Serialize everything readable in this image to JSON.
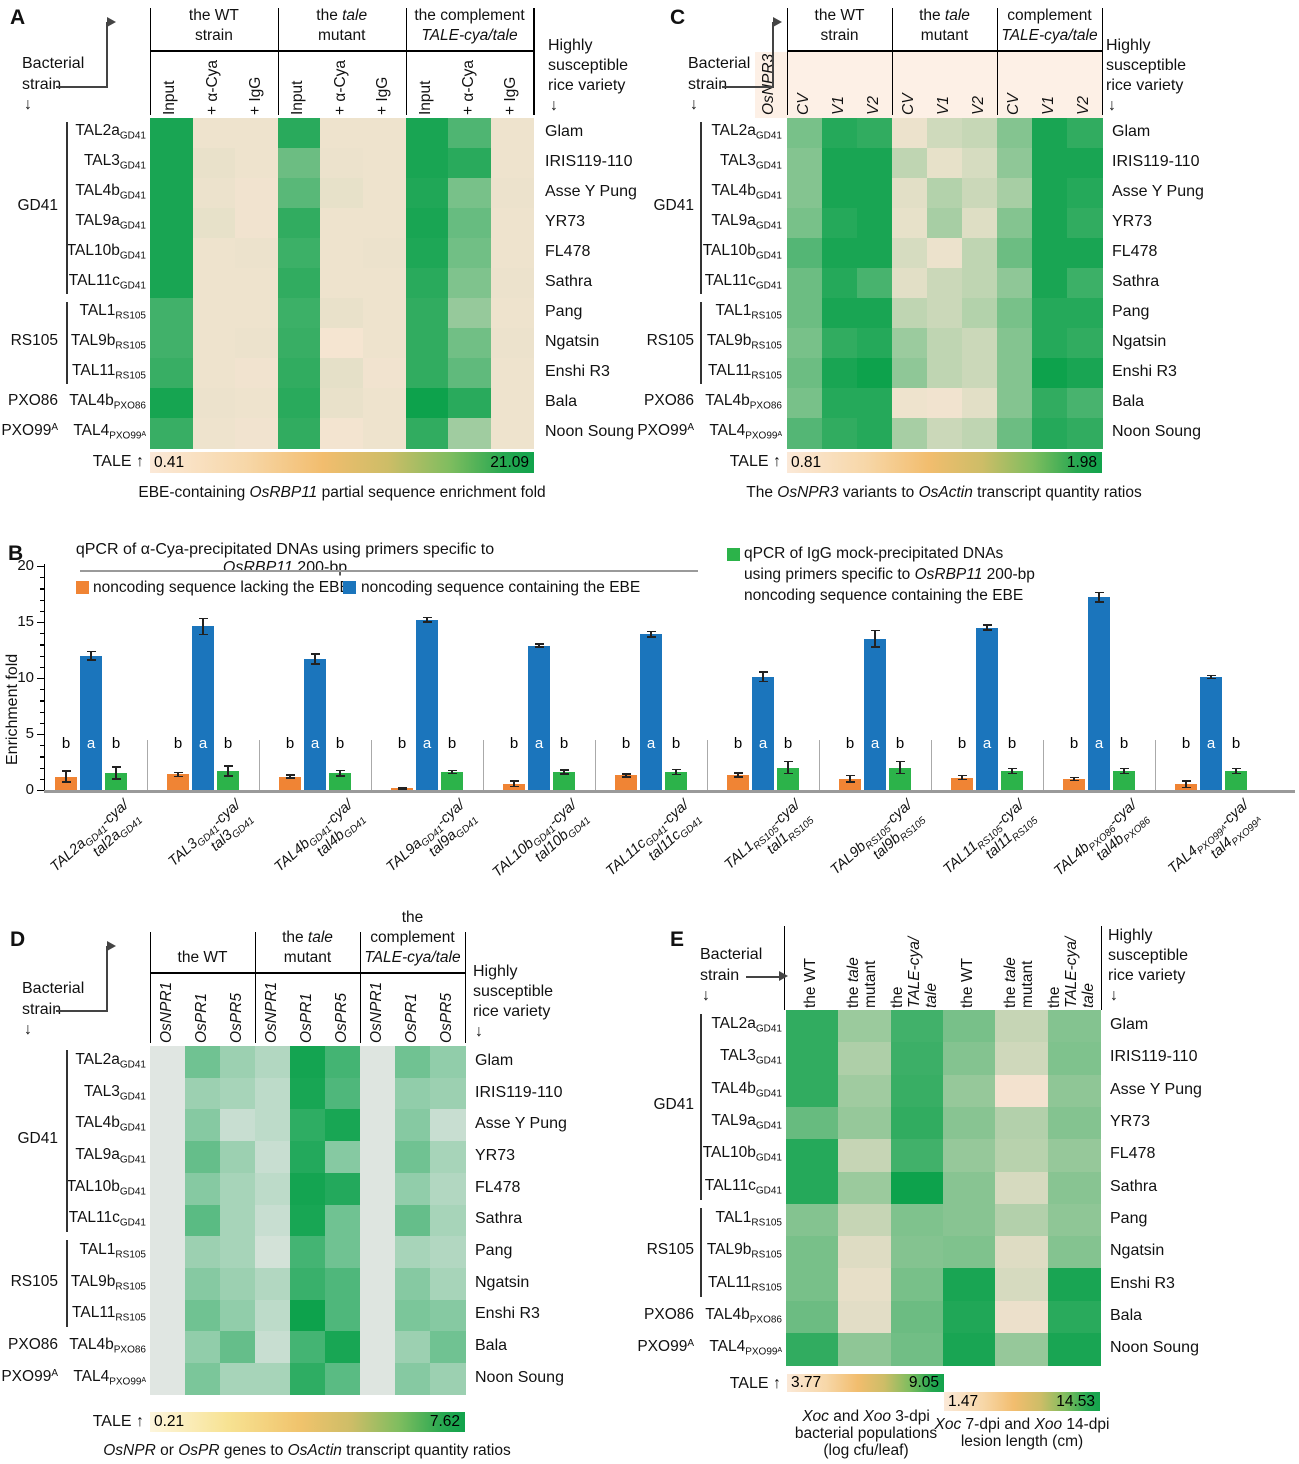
{
  "shared": {
    "row_labels": [
      "TAL2a~GD41~",
      "TAL3~GD41~",
      "TAL4b~GD41~",
      "TAL9a~GD41~",
      "TAL10b~GD41~",
      "TAL11c~GD41~",
      "TAL1~RS105~",
      "TAL9b~RS105~",
      "TAL11~RS105~",
      "TAL4b~PXO86~",
      "TAL4~PXO99ᴬ~"
    ],
    "strain_groups": [
      {
        "label": "GD41",
        "rows": [
          0,
          5
        ],
        "bracket": true
      },
      {
        "label": "RS105",
        "rows": [
          6,
          8
        ],
        "bracket": true
      },
      {
        "label": "PXO86",
        "rows": [
          9,
          9
        ],
        "bracket": false
      },
      {
        "label": "PXO99^A^",
        "rows": [
          10,
          10
        ],
        "bracket": false
      }
    ],
    "variety_labels": [
      "Glam",
      "IRIS119-110",
      "Asse Y Pung",
      "YR73",
      "FL478",
      "Sathra",
      "Pang",
      "Ngatsin",
      "Enshi R3",
      "Bala",
      "Noon Soung"
    ],
    "bacterial_label_lines": [
      "Bacterial",
      "strain"
    ],
    "highly_label_lines": [
      "Highly",
      "susceptible",
      "rice variety"
    ],
    "down_arrow": "↓"
  },
  "chart_data": [
    {
      "id": "A",
      "type": "heatmap",
      "col_groups": [
        [
          "the WT",
          "strain"
        ],
        [
          "the *tale*",
          "mutant"
        ],
        [
          "the complement",
          "*TALE-cya/tale*"
        ]
      ],
      "col_labels": [
        "Input",
        "+ α-Cya",
        "+ IgG",
        "Input",
        "+ α-Cya",
        "+ IgG",
        "Input",
        "+ α-Cya",
        "+ IgG"
      ],
      "scale": {
        "label": "TALE ↑",
        "min": "0.41",
        "max": "21.09"
      },
      "caption": "EBE-containing *OsRBP11* partial sequence enrichment fold",
      "colors": {
        "low": "#fae6d4",
        "high": "#0da24c"
      },
      "matrix": [
        [
          0.95,
          0.05,
          0.05,
          0.88,
          0.05,
          0.05,
          0.95,
          0.72,
          0.05
        ],
        [
          0.95,
          0.07,
          0.05,
          0.6,
          0.06,
          0.05,
          0.95,
          0.88,
          0.05
        ],
        [
          0.95,
          0.06,
          0.04,
          0.68,
          0.08,
          0.05,
          0.92,
          0.55,
          0.06
        ],
        [
          0.95,
          0.08,
          0.04,
          0.85,
          0.05,
          0.05,
          0.95,
          0.62,
          0.05
        ],
        [
          0.95,
          0.05,
          0.06,
          0.8,
          0.05,
          0.06,
          0.93,
          0.58,
          0.05
        ],
        [
          0.95,
          0.05,
          0.05,
          0.85,
          0.05,
          0.05,
          0.88,
          0.52,
          0.06
        ],
        [
          0.78,
          0.05,
          0.05,
          0.8,
          0.07,
          0.05,
          0.85,
          0.42,
          0.05
        ],
        [
          0.78,
          0.05,
          0.06,
          0.82,
          0.02,
          0.05,
          0.85,
          0.58,
          0.06
        ],
        [
          0.82,
          0.05,
          0.04,
          0.85,
          0.09,
          0.04,
          0.85,
          0.65,
          0.05
        ],
        [
          0.96,
          0.06,
          0.05,
          0.88,
          0.07,
          0.05,
          1.0,
          0.88,
          0.05
        ],
        [
          0.82,
          0.05,
          0.04,
          0.85,
          0.03,
          0.05,
          0.85,
          0.38,
          0.05
        ]
      ]
    },
    {
      "id": "B",
      "type": "bar",
      "title": "qPCR of α-Cya-precipitated DNAs using primers specific to *OsRBP11* 200-bp",
      "ylabel": "Enrichment fold",
      "ylim": [
        0,
        20
      ],
      "yticks": [
        0,
        5,
        10,
        15,
        20
      ],
      "sig_letters": [
        "b",
        "a",
        "b"
      ],
      "categories": [
        {
          "line1": "TAL2a~GD41~-cya/",
          "line2": "tal2a~GD41~"
        },
        {
          "line1": "TAL3~GD41~-cya/",
          "line2": "tal3~GD41~"
        },
        {
          "line1": "TAL4b~GD41~-cya/",
          "line2": "tal4b~GD41~"
        },
        {
          "line1": "TAL9a~GD41~-cya/",
          "line2": "tal9a~GD41~"
        },
        {
          "line1": "TAL10b~GD41~-cya/",
          "line2": "tal10b~GD41~"
        },
        {
          "line1": "TAL11c~GD41~-cya/",
          "line2": "tal11c~GD41~"
        },
        {
          "line1": "TAL1~RS105~-cya/",
          "line2": "tal1~RS105~"
        },
        {
          "line1": "TAL9b~RS105~-cya/",
          "line2": "tal9b~RS105~"
        },
        {
          "line1": "TAL11~RS105~-cya/",
          "line2": "tal11~RS105~"
        },
        {
          "line1": "TAL4b~PXO86~-cya/",
          "line2": "tal4b~PXO86~"
        },
        {
          "line1": "TAL4~PXO99ᴬ~-cya/",
          "line2": "tal4~PXO99ᴬ~"
        }
      ],
      "series": [
        {
          "name": "noncoding sequence lacking the EBE",
          "color": "#F08434",
          "values": [
            1.2,
            1.4,
            1.2,
            0.15,
            0.55,
            1.3,
            1.35,
            1.0,
            1.1,
            1.0,
            0.5
          ],
          "errors": [
            0.55,
            0.25,
            0.2,
            0.12,
            0.3,
            0.2,
            0.25,
            0.35,
            0.25,
            0.2,
            0.35
          ]
        },
        {
          "name": "noncoding sequence containing the EBE",
          "color": "#1B75BC",
          "values": [
            12.0,
            14.6,
            11.7,
            15.2,
            12.9,
            13.9,
            10.1,
            13.5,
            14.5,
            17.2,
            10.1
          ],
          "errors": [
            0.45,
            0.8,
            0.5,
            0.25,
            0.2,
            0.3,
            0.5,
            0.8,
            0.3,
            0.5,
            0.2
          ]
        },
        {
          "name": "qPCR of IgG mock-precipitated DNAs using primers specific to OsRBP11 200-bp noncoding sequence containing the EBE",
          "color": "#2CB34A",
          "values": [
            1.5,
            1.7,
            1.5,
            1.6,
            1.6,
            1.6,
            2.0,
            2.0,
            1.7,
            1.7,
            1.7
          ],
          "errors": [
            0.6,
            0.5,
            0.3,
            0.2,
            0.25,
            0.3,
            0.6,
            0.6,
            0.3,
            0.3,
            0.3
          ]
        }
      ],
      "legend_right_lines": [
        "qPCR of IgG mock-precipitated DNAs",
        "using primers specific to *OsRBP11* 200-bp",
        "noncoding sequence containing the EBE"
      ]
    },
    {
      "id": "C",
      "type": "heatmap",
      "gene_label": "*OsNPR3*",
      "band_color": "#fdf0e6",
      "col_groups": [
        [
          "the WT",
          "strain"
        ],
        [
          "the *tale*",
          "mutant"
        ],
        [
          "the complement",
          "*TALE-cya/tale*"
        ]
      ],
      "col_labels": [
        "*CV*",
        "*V1*",
        "*V2*",
        "*CV*",
        "*V1*",
        "*V2*",
        "*CV*",
        "*V1*",
        "*V2*"
      ],
      "scale": {
        "label": "TALE ↑",
        "min": "0.81",
        "max": "1.98"
      },
      "caption": "The *OsNPR3* variants to *OsActin* transcript quantity ratios",
      "colors": {
        "low": "#fae6d4",
        "high": "#0da24c"
      },
      "matrix": [
        [
          0.55,
          0.9,
          0.85,
          0.06,
          0.18,
          0.22,
          0.5,
          0.95,
          0.85
        ],
        [
          0.5,
          0.95,
          0.95,
          0.25,
          0.08,
          0.15,
          0.45,
          0.95,
          0.95
        ],
        [
          0.5,
          0.95,
          0.95,
          0.1,
          0.3,
          0.2,
          0.35,
          0.95,
          0.9
        ],
        [
          0.55,
          0.9,
          0.95,
          0.08,
          0.35,
          0.12,
          0.5,
          0.95,
          0.85
        ],
        [
          0.7,
          0.95,
          0.95,
          0.15,
          0.06,
          0.25,
          0.6,
          0.95,
          0.95
        ],
        [
          0.6,
          0.9,
          0.75,
          0.1,
          0.2,
          0.25,
          0.45,
          0.95,
          0.8
        ],
        [
          0.6,
          0.95,
          0.95,
          0.25,
          0.2,
          0.3,
          0.55,
          0.9,
          0.9
        ],
        [
          0.55,
          0.85,
          0.9,
          0.4,
          0.25,
          0.2,
          0.5,
          0.9,
          0.85
        ],
        [
          0.6,
          0.95,
          1.0,
          0.45,
          0.25,
          0.2,
          0.5,
          1.0,
          0.95
        ],
        [
          0.55,
          0.9,
          0.9,
          0.05,
          0.04,
          0.1,
          0.5,
          0.85,
          0.75
        ],
        [
          0.7,
          0.85,
          0.9,
          0.35,
          0.2,
          0.25,
          0.6,
          0.9,
          0.85
        ]
      ]
    },
    {
      "id": "D",
      "type": "heatmap",
      "col_groups": [
        [
          "the WT"
        ],
        [
          "the *tale*",
          "mutant"
        ],
        [
          "the complement",
          "*TALE-cya/tale*"
        ]
      ],
      "col_labels": [
        "*OsNPR1*",
        "*OsPR1*",
        "*OsPR5*",
        "*OsNPR1*",
        "*OsPR1*",
        "*OsPR5*",
        "*OsNPR1*",
        "*OsPR1*",
        "*OsPR5*"
      ],
      "scale": {
        "label": "TALE ↑",
        "min": "0.21",
        "max": "7.62"
      },
      "caption": "*OsNPR* or *OsPR* genes to *OsActin* transcript quantity ratios",
      "colors": {
        "low": "#e9e9e8",
        "high": "#0da24c"
      },
      "matrix": [
        [
          0.04,
          0.55,
          0.35,
          0.25,
          0.97,
          0.75,
          0.05,
          0.55,
          0.4
        ],
        [
          0.04,
          0.35,
          0.3,
          0.2,
          0.95,
          0.7,
          0.05,
          0.4,
          0.35
        ],
        [
          0.04,
          0.45,
          0.15,
          0.2,
          0.85,
          0.95,
          0.05,
          0.45,
          0.15
        ],
        [
          0.04,
          0.6,
          0.35,
          0.15,
          0.9,
          0.45,
          0.05,
          0.55,
          0.3
        ],
        [
          0.04,
          0.45,
          0.3,
          0.2,
          0.97,
          0.9,
          0.05,
          0.4,
          0.25
        ],
        [
          0.04,
          0.65,
          0.3,
          0.15,
          0.95,
          0.55,
          0.05,
          0.6,
          0.3
        ],
        [
          0.04,
          0.35,
          0.3,
          0.1,
          0.75,
          0.55,
          0.05,
          0.3,
          0.25
        ],
        [
          0.04,
          0.45,
          0.35,
          0.25,
          0.8,
          0.7,
          0.05,
          0.45,
          0.3
        ],
        [
          0.04,
          0.55,
          0.4,
          0.2,
          1.0,
          0.7,
          0.05,
          0.5,
          0.45
        ],
        [
          0.04,
          0.4,
          0.6,
          0.15,
          0.75,
          0.95,
          0.05,
          0.35,
          0.55
        ],
        [
          0.04,
          0.5,
          0.3,
          0.3,
          0.85,
          0.65,
          0.05,
          0.45,
          0.35
        ]
      ]
    },
    {
      "id": "E",
      "type": "heatmap",
      "col_labels_multiline": [
        [
          "the WT"
        ],
        [
          "the *tale*",
          "mutant"
        ],
        [
          "the",
          "*TALE-cya/*",
          "*tale*"
        ],
        [
          "the WT"
        ],
        [
          "the *tale*",
          "mutant"
        ],
        [
          "the",
          "*TALE-cya/*",
          "*tale*"
        ]
      ],
      "scales": [
        {
          "label": "TALE ↑",
          "min": "3.77",
          "max": "9.05",
          "caption_lines": [
            "*Xoc* and *Xoo* 3-dpi",
            "bacterial populations",
            "(log cfu/leaf)"
          ]
        },
        {
          "min": "1.47",
          "max": "14.53",
          "caption_lines": [
            "*Xoc* 7-dpi  and *Xoo* 14-dpi",
            "lesion length (cm)"
          ]
        }
      ],
      "colors": {
        "low": "#fae4d3",
        "high": "#0da24c"
      },
      "matrix": [
        [
          0.85,
          0.4,
          0.78,
          0.55,
          0.22,
          0.5
        ],
        [
          0.85,
          0.32,
          0.8,
          0.5,
          0.18,
          0.52
        ],
        [
          0.85,
          0.38,
          0.82,
          0.42,
          0.03,
          0.45
        ],
        [
          0.62,
          0.42,
          0.85,
          0.48,
          0.3,
          0.5
        ],
        [
          0.9,
          0.22,
          0.78,
          0.42,
          0.28,
          0.42
        ],
        [
          0.9,
          0.4,
          1.0,
          0.48,
          0.15,
          0.48
        ],
        [
          0.5,
          0.22,
          0.52,
          0.48,
          0.3,
          0.45
        ],
        [
          0.55,
          0.12,
          0.5,
          0.52,
          0.12,
          0.5
        ],
        [
          0.55,
          0.08,
          0.55,
          0.95,
          0.15,
          0.95
        ],
        [
          0.6,
          0.1,
          0.6,
          0.92,
          0.06,
          0.88
        ],
        [
          0.85,
          0.45,
          0.58,
          0.95,
          0.42,
          0.95
        ]
      ]
    }
  ]
}
